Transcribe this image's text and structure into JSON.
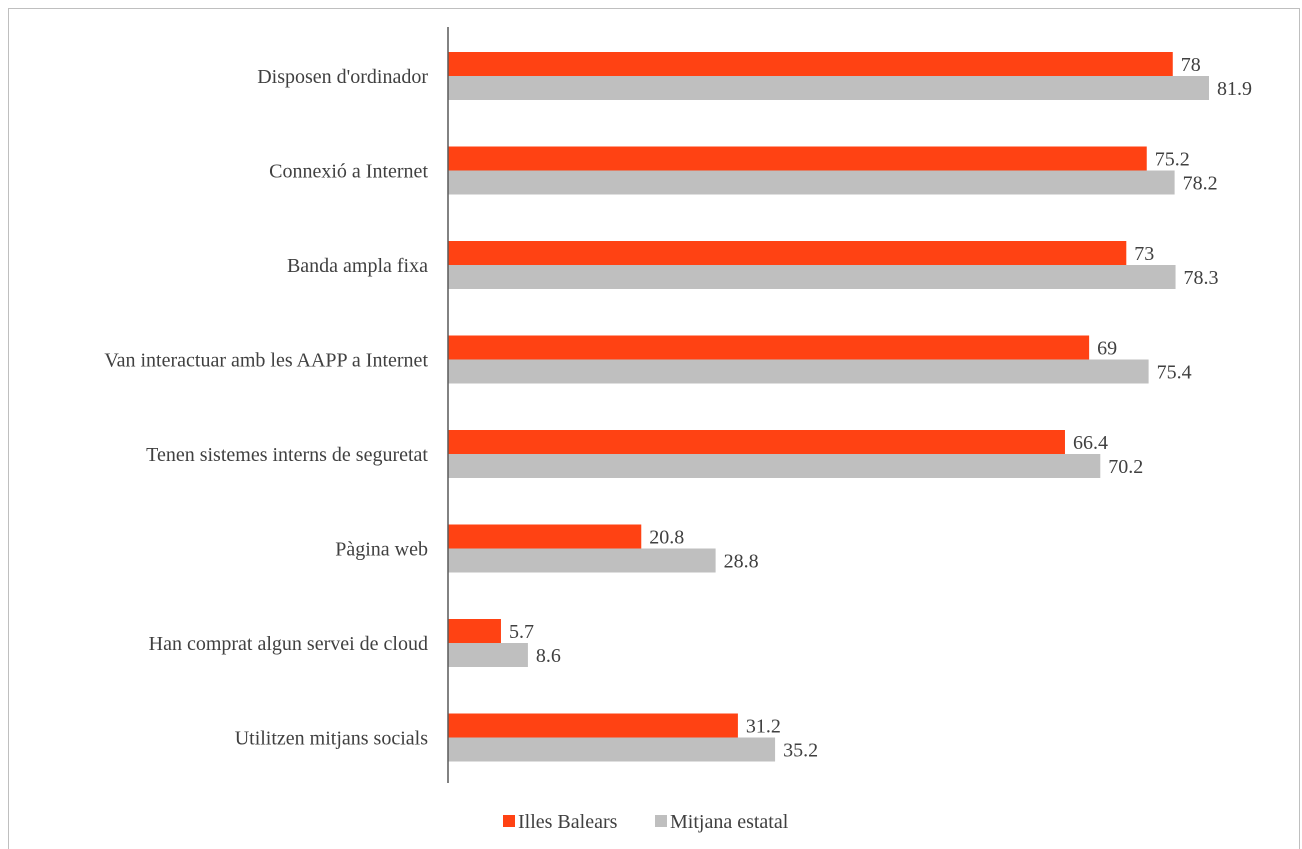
{
  "chart_data": {
    "type": "bar",
    "orientation": "horizontal",
    "categories": [
      "Disposen d'ordinador",
      "Connexió a Internet",
      "Banda ampla fixa",
      "Van interactuar amb les AAPP a Internet",
      "Tenen sistemes interns de seguretat",
      "Pàgina web",
      "Han comprat algun servei de cloud",
      "Utilitzen mitjans socials"
    ],
    "series": [
      {
        "name": "Illes Balears",
        "color": "#ff4213",
        "values": [
          78,
          75.2,
          73,
          69,
          66.4,
          20.8,
          5.7,
          31.2
        ]
      },
      {
        "name": "Mitjana estatal",
        "color": "#bfbfbf",
        "values": [
          81.9,
          78.2,
          78.3,
          75.4,
          70.2,
          28.8,
          8.6,
          35.2
        ]
      }
    ],
    "value_labels": {
      "Illes Balears": [
        "78",
        "75.2",
        "73",
        "69",
        "66.4",
        "20.8",
        "5.7",
        "31.2"
      ],
      "Mitjana estatal": [
        "81.9",
        "78.2",
        "78.3",
        "75.4",
        "70.2",
        "28.8",
        "8.6",
        "35.2"
      ]
    },
    "legend_position": "bottom",
    "grid": false,
    "xlim": [
      0,
      100
    ],
    "title": "",
    "xlabel": "",
    "ylabel": ""
  }
}
